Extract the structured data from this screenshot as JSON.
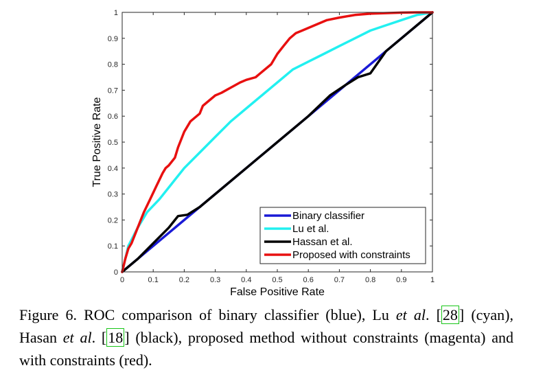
{
  "chart_data": {
    "type": "line",
    "xlabel": "False Positive Rate",
    "ylabel": "True Positive Rate",
    "xlim": [
      0,
      1
    ],
    "ylim": [
      0,
      1
    ],
    "xticks": [
      "0",
      "0.1",
      "0.2",
      "0.3",
      "0.4",
      "0.5",
      "0.6",
      "0.7",
      "0.8",
      "0.9",
      "1"
    ],
    "yticks": [
      "0",
      "0.1",
      "0.2",
      "0.3",
      "0.4",
      "0.5",
      "0.6",
      "0.7",
      "0.8",
      "0.9",
      "1"
    ],
    "legend_position": "bottom-right",
    "series": [
      {
        "name": "Binary classifier",
        "color": "#1a1ad6",
        "x": [
          0,
          1
        ],
        "y": [
          0,
          1
        ]
      },
      {
        "name": "Lu et al.",
        "color": "#22f0f0",
        "x": [
          0,
          0.02,
          0.05,
          0.08,
          0.12,
          0.16,
          0.2,
          0.25,
          0.3,
          0.35,
          0.4,
          0.45,
          0.5,
          0.55,
          0.6,
          0.65,
          0.7,
          0.75,
          0.8,
          0.85,
          0.9,
          0.95,
          1
        ],
        "y": [
          0,
          0.1,
          0.17,
          0.23,
          0.28,
          0.34,
          0.4,
          0.46,
          0.52,
          0.58,
          0.63,
          0.68,
          0.73,
          0.78,
          0.81,
          0.84,
          0.87,
          0.9,
          0.93,
          0.95,
          0.97,
          0.99,
          1
        ]
      },
      {
        "name": "Hassan et al.",
        "color": "#000000",
        "x": [
          0,
          0.05,
          0.1,
          0.15,
          0.18,
          0.21,
          0.25,
          0.3,
          0.4,
          0.5,
          0.6,
          0.67,
          0.72,
          0.76,
          0.8,
          0.85,
          0.9,
          0.95,
          1
        ],
        "y": [
          0,
          0.05,
          0.11,
          0.17,
          0.215,
          0.22,
          0.25,
          0.3,
          0.4,
          0.5,
          0.6,
          0.68,
          0.72,
          0.75,
          0.765,
          0.85,
          0.9,
          0.95,
          1
        ]
      },
      {
        "name": "Proposed with constraints",
        "color": "#e81010",
        "x": [
          0,
          0.01,
          0.02,
          0.03,
          0.05,
          0.07,
          0.09,
          0.11,
          0.13,
          0.14,
          0.15,
          0.17,
          0.18,
          0.2,
          0.22,
          0.24,
          0.25,
          0.26,
          0.28,
          0.3,
          0.32,
          0.35,
          0.38,
          0.4,
          0.43,
          0.45,
          0.48,
          0.5,
          0.52,
          0.54,
          0.56,
          0.58,
          0.62,
          0.66,
          0.7,
          0.75,
          0.8,
          0.85,
          0.9,
          0.95,
          1
        ],
        "y": [
          0,
          0.05,
          0.09,
          0.11,
          0.17,
          0.23,
          0.28,
          0.33,
          0.38,
          0.4,
          0.41,
          0.44,
          0.48,
          0.54,
          0.58,
          0.6,
          0.61,
          0.64,
          0.66,
          0.68,
          0.69,
          0.71,
          0.73,
          0.74,
          0.75,
          0.77,
          0.8,
          0.84,
          0.87,
          0.9,
          0.92,
          0.93,
          0.95,
          0.97,
          0.98,
          0.99,
          0.995,
          0.997,
          0.999,
          1,
          1
        ]
      }
    ]
  },
  "caption": {
    "text1": "Figure 6. ROC comparison of binary classifier (blue), Lu ",
    "etal1": "et al",
    "text2": ". ",
    "ref1": "28",
    "text3": " (cyan), Hasan ",
    "etal2": "et al",
    "text4": ". ",
    "ref2": "18",
    "text5": " (black), proposed method without constraints (magenta) and with constraints (red)."
  }
}
